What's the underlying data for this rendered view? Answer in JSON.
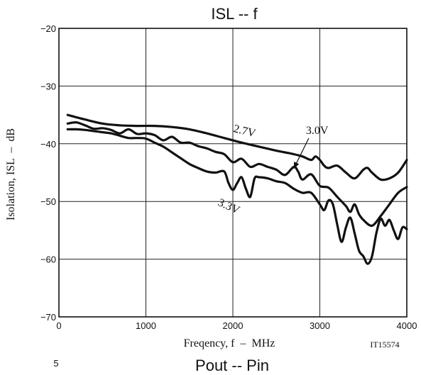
{
  "page_title": "ISL -- f",
  "footer_fragment": "5",
  "next_title": "Pout -- Pin",
  "chart_data": {
    "type": "line",
    "title": "ISL -- f",
    "xlabel": "Freqency, f  –  MHz",
    "ylabel": "Isolation, ISL  –  dB",
    "code": "IT15574",
    "xlim": [
      0,
      4000
    ],
    "ylim": [
      -70,
      -20
    ],
    "x_ticks": [
      0,
      1000,
      2000,
      3000,
      4000
    ],
    "y_ticks": [
      -20,
      -30,
      -40,
      -50,
      -60,
      -70
    ],
    "x_tick_labels": [
      "0",
      "1000",
      "2000",
      "3000",
      "4000"
    ],
    "y_tick_labels": [
      "−20",
      "−30",
      "−40",
      "−50",
      "−60",
      "−70"
    ],
    "grid": true,
    "series": [
      {
        "name": "2.7V",
        "x": [
          100,
          300,
          500,
          700,
          900,
          1100,
          1300,
          1500,
          1700,
          1900,
          2100,
          2300,
          2500,
          2600,
          2700,
          2800,
          2900,
          2950,
          3000,
          3050,
          3100,
          3200,
          3300,
          3400,
          3500,
          3550,
          3600,
          3700,
          3800,
          3900,
          4000
        ],
        "y": [
          -35,
          -35.8,
          -36.5,
          -36.8,
          -36.9,
          -36.9,
          -37.1,
          -37.5,
          -38.2,
          -39,
          -39.8,
          -40.5,
          -41.2,
          -41.5,
          -41.8,
          -42.2,
          -42.8,
          -42.2,
          -42.8,
          -43.8,
          -44.2,
          -43.8,
          -45,
          -46,
          -44.5,
          -44.2,
          -45,
          -46.2,
          -46,
          -45,
          -42.8
        ]
      },
      {
        "name": "3.0V",
        "x": [
          100,
          200,
          300,
          400,
          500,
          600,
          700,
          800,
          900,
          1000,
          1100,
          1200,
          1300,
          1400,
          1500,
          1600,
          1700,
          1800,
          1900,
          2000,
          2100,
          2200,
          2300,
          2400,
          2500,
          2600,
          2700,
          2750,
          2800,
          2900,
          3000,
          3100,
          3200,
          3300,
          3350,
          3400,
          3450,
          3500,
          3600,
          3700,
          3800,
          3900,
          4000
        ],
        "y": [
          -36.5,
          -36.3,
          -36.8,
          -37.4,
          -37.3,
          -37.6,
          -38.2,
          -37.5,
          -38.3,
          -38.2,
          -38.5,
          -39.4,
          -38.8,
          -39.8,
          -39.8,
          -40.4,
          -40.8,
          -41.4,
          -41.8,
          -43.2,
          -42.6,
          -44,
          -43.5,
          -44,
          -44.5,
          -45.4,
          -44,
          -44.8,
          -46.2,
          -45.3,
          -47.3,
          -47.6,
          -49.2,
          -50.8,
          -51.8,
          -50.5,
          -52.2,
          -53.2,
          -54.2,
          -52.5,
          -50.5,
          -48.5,
          -47.5
        ]
      },
      {
        "name": "3.3V",
        "x": [
          100,
          200,
          300,
          400,
          500,
          600,
          700,
          800,
          900,
          1000,
          1100,
          1200,
          1300,
          1400,
          1500,
          1600,
          1700,
          1800,
          1900,
          1950,
          2000,
          2050,
          2100,
          2150,
          2200,
          2250,
          2300,
          2400,
          2500,
          2600,
          2700,
          2800,
          2900,
          3000,
          3050,
          3100,
          3150,
          3200,
          3250,
          3300,
          3350,
          3400,
          3450,
          3500,
          3550,
          3600,
          3650,
          3700,
          3750,
          3800,
          3850,
          3900,
          3950,
          4000
        ],
        "y": [
          -37.5,
          -37.5,
          -37.6,
          -37.8,
          -38,
          -38.2,
          -38.6,
          -39,
          -39,
          -39.1,
          -39.8,
          -40.5,
          -41.5,
          -42.5,
          -43.5,
          -44.2,
          -44.8,
          -45,
          -44.8,
          -46.8,
          -48,
          -46.8,
          -45.8,
          -47.8,
          -49.2,
          -46,
          -45.8,
          -46,
          -46.5,
          -46.8,
          -47.8,
          -48.5,
          -48.5,
          -50.5,
          -51.5,
          -49.8,
          -50.5,
          -54,
          -57,
          -54.5,
          -52.8,
          -55.5,
          -58.5,
          -59.5,
          -60.8,
          -59.5,
          -55.5,
          -53,
          -54.2,
          -53.2,
          -55,
          -56.5,
          -54.5,
          -54.8
        ]
      }
    ],
    "annotations": [
      {
        "text": "2.7V",
        "x": 2000,
        "y": -37.9
      },
      {
        "text": "3.0V",
        "x": 2840,
        "y": -38.3,
        "arrow_to": [
          2700,
          -44.3
        ]
      },
      {
        "text": "3.3V",
        "x": 1820,
        "y": -50.6
      }
    ]
  }
}
